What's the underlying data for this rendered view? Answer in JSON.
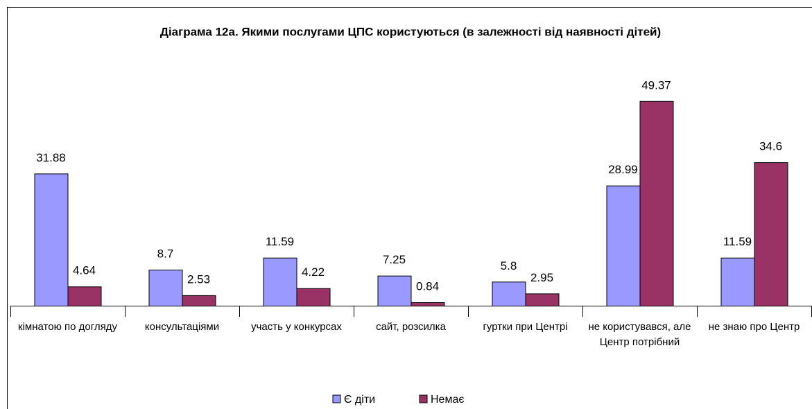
{
  "chart_data": {
    "type": "bar",
    "title": "Діаграма 12а. Якими послугами ЦПС користуються (в залежності від наявності дітей)",
    "categories": [
      "кімнатою по догляду",
      "консультаціями",
      "участь у конкурсах",
      "сайт, розсилка",
      "гуртки при Центрі",
      "не користувався, але Центр потрібний",
      "не знаю про Центр"
    ],
    "series": [
      {
        "name": "Є діти",
        "color": "#9999ff",
        "values": [
          31.88,
          8.7,
          11.59,
          7.25,
          5.8,
          28.99,
          11.59
        ]
      },
      {
        "name": "Немає",
        "color": "#993366",
        "values": [
          4.64,
          2.53,
          4.22,
          0.84,
          2.95,
          49.37,
          34.6
        ]
      }
    ],
    "ylim": [
      0,
      50
    ]
  }
}
